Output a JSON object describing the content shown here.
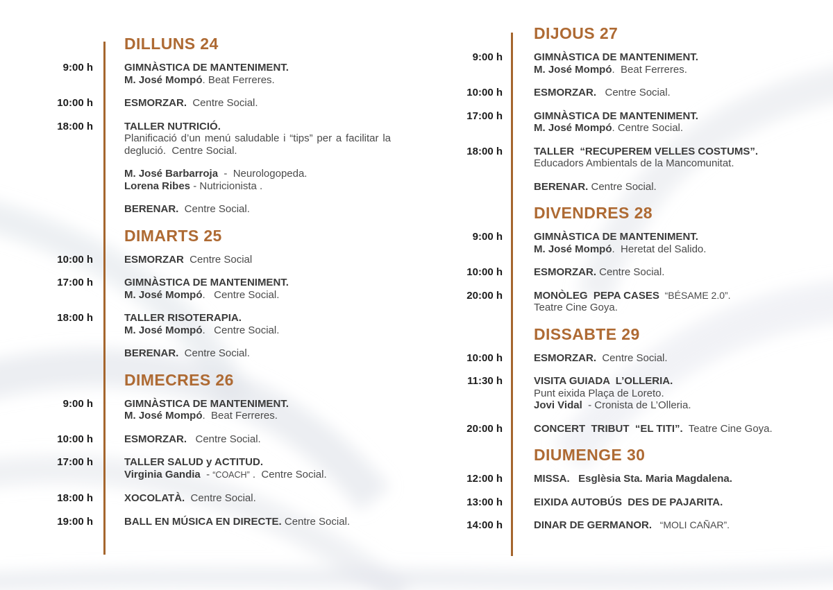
{
  "theme": {
    "accent": "#ae6a33",
    "line": "#a5662e",
    "text_strong": "#3b3b3b",
    "text_body": "#4a4a4a",
    "time": "#1d1d1d",
    "wave": "#dfe3ea"
  },
  "columns": [
    {
      "name": "left",
      "days": [
        {
          "title": "DILLUNS 24",
          "rows": [
            {
              "time": "9:00 h",
              "paras": [
                [
                  {
                    "segs": [
                      {
                        "t": "GIMNÀSTICA DE MANTENIMENT.",
                        "s": "b"
                      }
                    ]
                  },
                  {
                    "segs": [
                      {
                        "t": "M. José Mompó",
                        "s": "b"
                      },
                      {
                        "t": ". Beat Ferreres.",
                        "s": "r"
                      }
                    ]
                  }
                ]
              ]
            },
            {
              "time": "10:00 h",
              "paras": [
                [
                  {
                    "segs": [
                      {
                        "t": "ESMORZAR.",
                        "s": "b"
                      },
                      {
                        "t": "  Centre Social.",
                        "s": "r"
                      }
                    ]
                  }
                ]
              ]
            },
            {
              "time": "18:00 h",
              "paras": [
                [
                  {
                    "segs": [
                      {
                        "t": "TALLER NUTRICIÓ.",
                        "s": "b"
                      }
                    ]
                  },
                  {
                    "j": 1,
                    "segs": [
                      {
                        "t": "Planificació d’un menú saludable i “tips” per a facilitar la deglució.  Centre Social.",
                        "s": "r"
                      }
                    ]
                  }
                ],
                [
                  {
                    "segs": [
                      {
                        "t": "M. José Barbarroja",
                        "s": "b"
                      },
                      {
                        "t": "  -  Neurologopeda.",
                        "s": "r"
                      }
                    ]
                  },
                  {
                    "segs": [
                      {
                        "t": "Lorena Ribes",
                        "s": "b"
                      },
                      {
                        "t": " - Nutricionista .",
                        "s": "r"
                      }
                    ]
                  }
                ],
                [
                  {
                    "segs": [
                      {
                        "t": "BERENAR.",
                        "s": "b"
                      },
                      {
                        "t": "  Centre Social.",
                        "s": "r"
                      }
                    ]
                  }
                ]
              ]
            }
          ]
        },
        {
          "title": "DIMARTS  25",
          "rows": [
            {
              "time": "10:00 h",
              "paras": [
                [
                  {
                    "segs": [
                      {
                        "t": "ESMORZAR",
                        "s": "b"
                      },
                      {
                        "t": "  Centre Social",
                        "s": "r"
                      }
                    ]
                  }
                ]
              ]
            },
            {
              "time": "17:00 h",
              "paras": [
                [
                  {
                    "segs": [
                      {
                        "t": "GIMNÀSTICA DE MANTENIMENT.",
                        "s": "b"
                      }
                    ]
                  },
                  {
                    "segs": [
                      {
                        "t": "M. José Mompó",
                        "s": "b"
                      },
                      {
                        "t": ".   Centre Social.",
                        "s": "r"
                      }
                    ]
                  }
                ]
              ]
            },
            {
              "time": "18:00 h",
              "paras": [
                [
                  {
                    "segs": [
                      {
                        "t": "TALLER RISOTERAPIA.",
                        "s": "b"
                      }
                    ]
                  },
                  {
                    "segs": [
                      {
                        "t": "M. José Mompó",
                        "s": "b"
                      },
                      {
                        "t": ".   Centre Social.",
                        "s": "r"
                      }
                    ]
                  }
                ],
                [
                  {
                    "segs": [
                      {
                        "t": "BERENAR.",
                        "s": "b"
                      },
                      {
                        "t": "  Centre Social.",
                        "s": "r"
                      }
                    ]
                  }
                ]
              ]
            }
          ]
        },
        {
          "title": "DIMECRES 26",
          "rows": [
            {
              "time": "9:00 h",
              "paras": [
                [
                  {
                    "segs": [
                      {
                        "t": "GIMNÀSTICA DE MANTENIMENT.",
                        "s": "b"
                      }
                    ]
                  },
                  {
                    "segs": [
                      {
                        "t": "M. José Mompó",
                        "s": "b"
                      },
                      {
                        "t": ".  Beat Ferreres.",
                        "s": "r"
                      }
                    ]
                  }
                ]
              ]
            },
            {
              "time": "10:00 h",
              "paras": [
                [
                  {
                    "segs": [
                      {
                        "t": "ESMORZAR.",
                        "s": "b"
                      },
                      {
                        "t": "   Centre Social.",
                        "s": "r"
                      }
                    ]
                  }
                ]
              ]
            },
            {
              "time": "17:00 h",
              "paras": [
                [
                  {
                    "segs": [
                      {
                        "t": "TALLER SALUD y ACTITUD.",
                        "s": "b"
                      }
                    ]
                  },
                  {
                    "segs": [
                      {
                        "t": "Virginia Gandia",
                        "s": "b"
                      },
                      {
                        "t": "  - ",
                        "s": "r"
                      },
                      {
                        "t": "“COACH”",
                        "s": "q"
                      },
                      {
                        "t": " .  Centre Social.",
                        "s": "r"
                      }
                    ]
                  }
                ]
              ]
            },
            {
              "time": "18:00 h",
              "paras": [
                [
                  {
                    "segs": [
                      {
                        "t": "XOCOLATÀ.",
                        "s": "b"
                      },
                      {
                        "t": "  Centre Social.",
                        "s": "r"
                      }
                    ]
                  }
                ]
              ]
            },
            {
              "time": "19:00 h",
              "paras": [
                [
                  {
                    "segs": [
                      {
                        "t": "BALL EN MÚSICA EN DIRECTE.",
                        "s": "b"
                      },
                      {
                        "t": " Centre Social.",
                        "s": "r"
                      }
                    ]
                  }
                ]
              ]
            }
          ]
        }
      ]
    },
    {
      "name": "right",
      "days": [
        {
          "title": "DIJOUS 27",
          "rows": [
            {
              "time": "9:00 h",
              "paras": [
                [
                  {
                    "segs": [
                      {
                        "t": "GIMNÀSTICA DE MANTENIMENT.",
                        "s": "b"
                      }
                    ]
                  },
                  {
                    "segs": [
                      {
                        "t": "M. José Mompó",
                        "s": "b"
                      },
                      {
                        "t": ".  Beat Ferreres.",
                        "s": "r"
                      }
                    ]
                  }
                ]
              ]
            },
            {
              "time": "10:00 h",
              "paras": [
                [
                  {
                    "segs": [
                      {
                        "t": "ESMORZAR.",
                        "s": "b"
                      },
                      {
                        "t": "   Centre Social.",
                        "s": "r"
                      }
                    ]
                  }
                ]
              ]
            },
            {
              "time": "17:00 h",
              "paras": [
                [
                  {
                    "segs": [
                      {
                        "t": "GIMNÀSTICA DE MANTENIMENT.",
                        "s": "b"
                      }
                    ]
                  },
                  {
                    "segs": [
                      {
                        "t": "M. José Mompó",
                        "s": "b"
                      },
                      {
                        "t": ". Centre Social.",
                        "s": "r"
                      }
                    ]
                  }
                ]
              ]
            },
            {
              "time": "18:00 h",
              "paras": [
                [
                  {
                    "segs": [
                      {
                        "t": "TALLER  “RECUPEREM VELLES COSTUMS”.",
                        "s": "b"
                      }
                    ]
                  },
                  {
                    "segs": [
                      {
                        "t": "Educadors Ambientals de la Mancomunitat.",
                        "s": "r"
                      }
                    ]
                  }
                ],
                [
                  {
                    "segs": [
                      {
                        "t": "BERENAR.",
                        "s": "b"
                      },
                      {
                        "t": " Centre Social.",
                        "s": "r"
                      }
                    ]
                  }
                ]
              ]
            }
          ]
        },
        {
          "title": "DIVENDRES 28",
          "rows": [
            {
              "time": "9:00 h",
              "paras": [
                [
                  {
                    "segs": [
                      {
                        "t": "GIMNÀSTICA DE MANTENIMENT.",
                        "s": "b"
                      }
                    ]
                  },
                  {
                    "segs": [
                      {
                        "t": "M. José Mompó",
                        "s": "b"
                      },
                      {
                        "t": ".  Heretat del Salido.",
                        "s": "r"
                      }
                    ]
                  }
                ]
              ]
            },
            {
              "time": "10:00 h",
              "paras": [
                [
                  {
                    "segs": [
                      {
                        "t": "ESMORZAR.",
                        "s": "b"
                      },
                      {
                        "t": " Centre Social.",
                        "s": "r"
                      }
                    ]
                  }
                ]
              ]
            },
            {
              "time": "20:00 h",
              "paras": [
                [
                  {
                    "segs": [
                      {
                        "t": "MONÒLEG  PEPA CASES",
                        "s": "b"
                      },
                      {
                        "t": "  “BÉSAME 2.0”.",
                        "s": "m"
                      }
                    ]
                  },
                  {
                    "segs": [
                      {
                        "t": "Teatre Cine Goya.",
                        "s": "r"
                      }
                    ]
                  }
                ]
              ]
            }
          ]
        },
        {
          "title": "DISSABTE 29",
          "rows": [
            {
              "time": "10:00 h",
              "paras": [
                [
                  {
                    "segs": [
                      {
                        "t": "ESMORZAR.",
                        "s": "b"
                      },
                      {
                        "t": "  Centre Social.",
                        "s": "r"
                      }
                    ]
                  }
                ]
              ]
            },
            {
              "time": "11:30 h",
              "paras": [
                [
                  {
                    "segs": [
                      {
                        "t": "VISITA GUIADA  L’OLLERIA.",
                        "s": "b"
                      }
                    ]
                  },
                  {
                    "segs": [
                      {
                        "t": "Punt eixida Plaça de Loreto.",
                        "s": "r"
                      }
                    ]
                  },
                  {
                    "segs": [
                      {
                        "t": "Jovi Vidal",
                        "s": "b"
                      },
                      {
                        "t": "  - Cronista de L’Olleria.",
                        "s": "r"
                      }
                    ]
                  }
                ]
              ]
            },
            {
              "time": "20:00 h",
              "paras": [
                [
                  {
                    "segs": [
                      {
                        "t": "CONCERT  TRIBUT  “EL TITI”.",
                        "s": "b"
                      },
                      {
                        "t": "  Teatre Cine Goya.",
                        "s": "r"
                      }
                    ]
                  }
                ]
              ]
            }
          ]
        },
        {
          "title": "DIUMENGE 30",
          "rows": [
            {
              "time": "12:00 h",
              "paras": [
                [
                  {
                    "segs": [
                      {
                        "t": "MISSA.   Esglèsia Sta. Maria Magdalena.",
                        "s": "b"
                      }
                    ]
                  }
                ]
              ]
            },
            {
              "time": "13:00 h",
              "paras": [
                [
                  {
                    "segs": [
                      {
                        "t": "EIXIDA AUTOBÚS  DES DE PAJARITA.",
                        "s": "b"
                      }
                    ]
                  }
                ]
              ]
            },
            {
              "time": "14:00 h",
              "paras": [
                [
                  {
                    "segs": [
                      {
                        "t": "DINAR DE GERMANOR.",
                        "s": "b"
                      },
                      {
                        "t": "   “MOLI CAÑAR”.",
                        "s": "m"
                      }
                    ]
                  }
                ]
              ]
            }
          ]
        }
      ]
    }
  ]
}
